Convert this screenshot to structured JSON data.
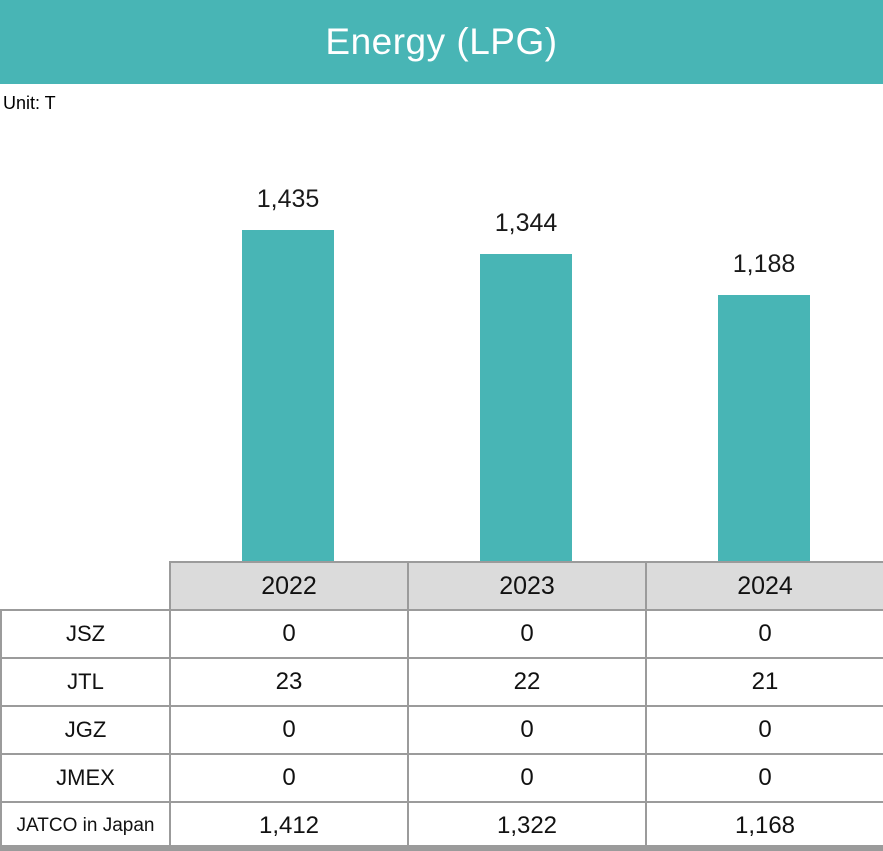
{
  "header": {
    "title": "Energy (LPG)",
    "unit_label": "Unit: T",
    "banner_color": "#48B5B5"
  },
  "chart_data": {
    "type": "bar",
    "title": "Energy (LPG)",
    "unit": "T",
    "categories": [
      "2022",
      "2023",
      "2024"
    ],
    "values": [
      1435,
      1344,
      1188
    ],
    "value_labels": [
      "1,435",
      "1,344",
      "1,188"
    ],
    "bar_color": "#48B5B5",
    "ylim": [
      0,
      1500
    ],
    "grid": false,
    "legend": false,
    "data_labels_position": "above-bar",
    "xlabel": "",
    "ylabel": ""
  },
  "table": {
    "columns": [
      "2022",
      "2023",
      "2024"
    ],
    "rows": [
      {
        "label": "JSZ",
        "values": [
          "0",
          "0",
          "0"
        ]
      },
      {
        "label": "JTL",
        "values": [
          "23",
          "22",
          "21"
        ]
      },
      {
        "label": "JGZ",
        "values": [
          "0",
          "0",
          "0"
        ]
      },
      {
        "label": "JMEX",
        "values": [
          "0",
          "0",
          "0"
        ]
      },
      {
        "label": "JATCO in Japan",
        "values": [
          "1,412",
          "1,322",
          "1,168"
        ]
      }
    ],
    "header_bg": "#DBDBDB",
    "border_color": "#9B9B9B"
  }
}
